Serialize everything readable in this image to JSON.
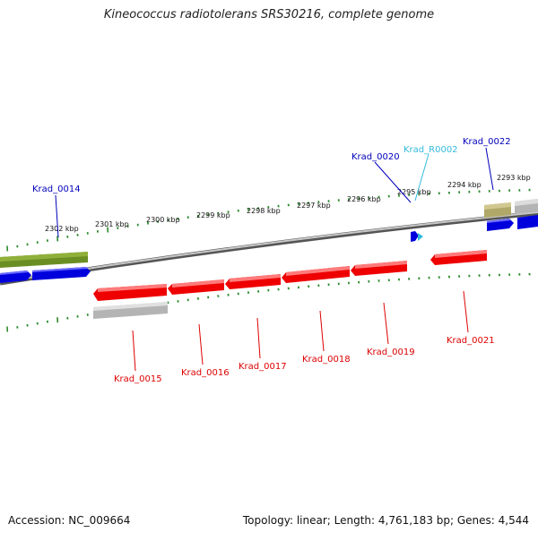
{
  "title": "Kineococcus radiotolerans SRS30216, complete genome",
  "accession": "Accession: NC_009664",
  "summary": "Topology: linear; Length: 4,761,183 bp; Genes: 4,544",
  "colors": {
    "backbone": "#8a8a8a",
    "tick": "#2e8b2e",
    "forward_cds": "#0000dd",
    "reverse_cds": "#ee0000",
    "rna": "#33bbdd",
    "olive": "#6b8e23",
    "khaki": "#b0a868",
    "gray_feature": "#b4b4b4"
  },
  "scale_labels": [
    "2302 kbp",
    "2301 kbp",
    "2300 kbp",
    "2299 kbp",
    "2298 kbp",
    "2297 kbp",
    "2296 kbp",
    "2295 kbp",
    "2294 kbp",
    "2293 kbp"
  ],
  "upper_labels": [
    "Krad_0014",
    "Krad_0020",
    "Krad_R0002",
    "Krad_0022"
  ],
  "lower_labels": [
    "Krad_0015",
    "Krad_0016",
    "Krad_0017",
    "Krad_0018",
    "Krad_0019",
    "Krad_0021"
  ]
}
